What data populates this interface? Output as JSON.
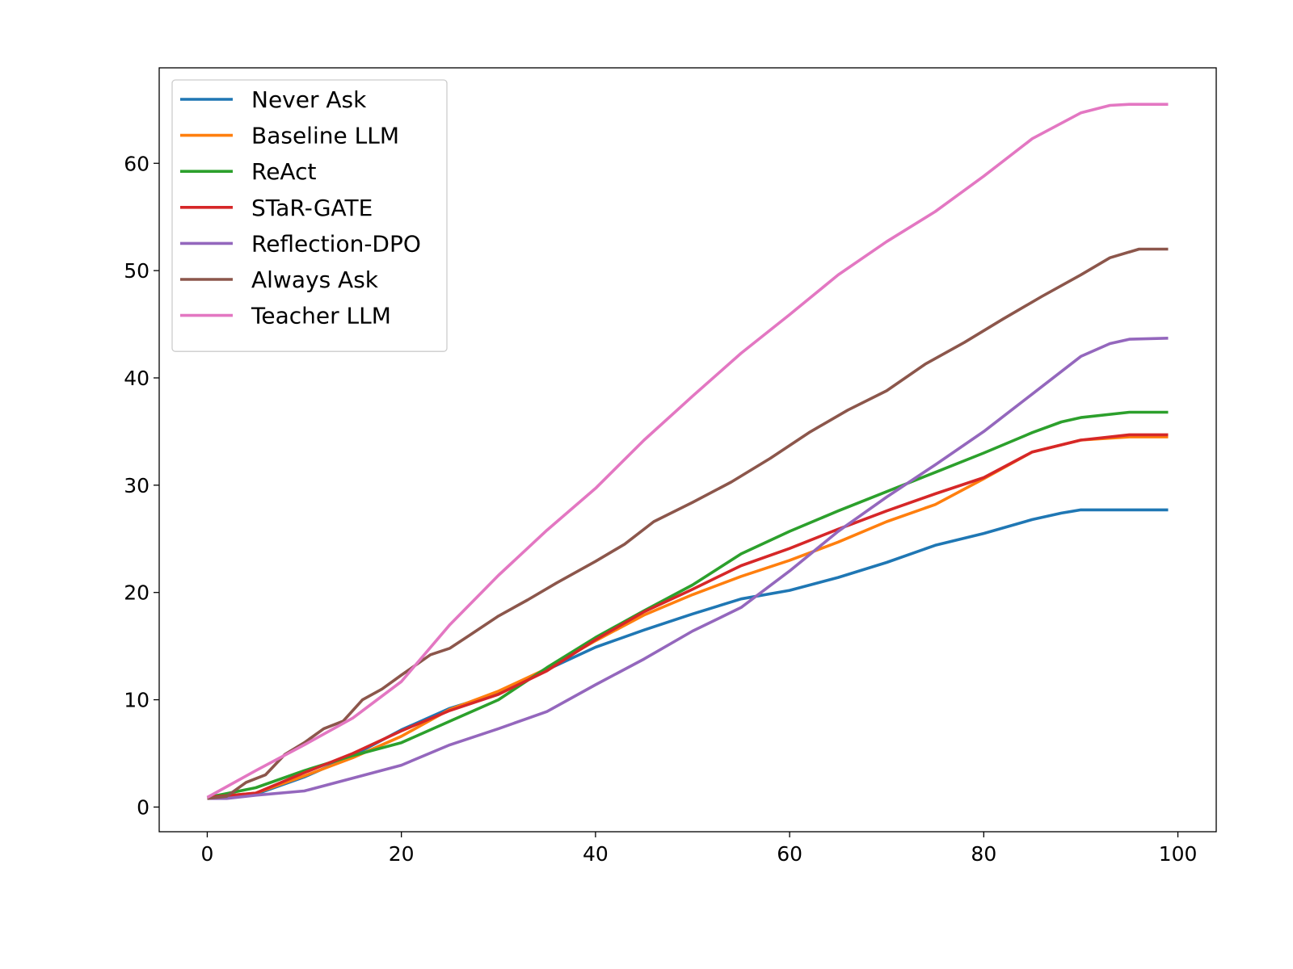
{
  "chart_data": {
    "type": "line",
    "title": "",
    "xlabel": "",
    "ylabel": "",
    "xlim": [
      -4.95,
      103.95
    ],
    "ylim": [
      -2.3,
      68.9
    ],
    "xticks": [
      0,
      20,
      40,
      60,
      80,
      100
    ],
    "yticks": [
      0,
      10,
      20,
      30,
      40,
      50,
      60
    ],
    "grid": false,
    "legend_position": "top-left",
    "series": [
      {
        "name": "Never Ask",
        "color": "#1f77b4",
        "x": [
          0,
          5,
          10,
          15,
          20,
          25,
          30,
          35,
          40,
          45,
          50,
          55,
          60,
          65,
          70,
          75,
          80,
          85,
          88,
          90,
          95,
          99
        ],
        "y": [
          0.9,
          1.2,
          2.8,
          4.8,
          7.2,
          9.2,
          10.6,
          12.8,
          14.9,
          16.5,
          18.0,
          19.4,
          20.2,
          21.4,
          22.8,
          24.4,
          25.5,
          26.8,
          27.4,
          27.7,
          27.7,
          27.7
        ]
      },
      {
        "name": "Baseline LLM",
        "color": "#ff7f0e",
        "x": [
          0,
          5,
          10,
          15,
          20,
          25,
          30,
          35,
          40,
          45,
          50,
          55,
          60,
          65,
          70,
          75,
          80,
          85,
          90,
          95,
          99
        ],
        "y": [
          0.9,
          1.3,
          2.9,
          4.6,
          6.6,
          9.1,
          10.8,
          12.9,
          15.5,
          17.9,
          19.8,
          21.5,
          23.0,
          24.7,
          26.6,
          28.2,
          30.6,
          33.1,
          34.2,
          34.5,
          34.5
        ]
      },
      {
        "name": "ReAct",
        "color": "#2ca02c",
        "x": [
          0,
          5,
          10,
          15,
          20,
          25,
          30,
          35,
          40,
          45,
          50,
          55,
          60,
          65,
          70,
          75,
          80,
          85,
          88,
          90,
          95,
          99
        ],
        "y": [
          0.9,
          1.8,
          3.4,
          4.8,
          6.0,
          8.0,
          10.0,
          13.0,
          15.8,
          18.3,
          20.7,
          23.6,
          25.7,
          27.6,
          29.4,
          31.2,
          33.0,
          34.9,
          35.9,
          36.3,
          36.8,
          36.8
        ]
      },
      {
        "name": "STaR-GATE",
        "color": "#d62728",
        "x": [
          0,
          5,
          10,
          15,
          20,
          25,
          30,
          35,
          40,
          45,
          50,
          55,
          60,
          65,
          70,
          75,
          80,
          85,
          90,
          95,
          99
        ],
        "y": [
          0.9,
          1.3,
          3.2,
          5.0,
          7.1,
          9.0,
          10.5,
          12.7,
          15.6,
          18.2,
          20.3,
          22.5,
          24.1,
          25.9,
          27.6,
          29.2,
          30.7,
          33.1,
          34.2,
          34.7,
          34.7
        ]
      },
      {
        "name": "Reflection-DPO",
        "color": "#9467bd",
        "x": [
          0,
          2,
          5,
          10,
          15,
          20,
          25,
          30,
          35,
          40,
          45,
          50,
          55,
          60,
          65,
          70,
          75,
          80,
          85,
          90,
          93,
          95,
          99
        ],
        "y": [
          0.8,
          0.8,
          1.1,
          1.5,
          2.7,
          3.9,
          5.8,
          7.3,
          8.9,
          11.4,
          13.8,
          16.4,
          18.6,
          22.0,
          25.7,
          28.9,
          31.9,
          35.0,
          38.5,
          42.0,
          43.2,
          43.6,
          43.7
        ]
      },
      {
        "name": "Always Ask",
        "color": "#8c564b",
        "x": [
          0,
          2,
          4,
          6,
          8,
          10,
          12,
          14,
          16,
          18,
          20,
          23,
          25,
          27,
          30,
          33,
          36,
          40,
          43,
          46,
          50,
          54,
          58,
          62,
          66,
          70,
          74,
          78,
          82,
          86,
          90,
          93,
          96,
          99
        ],
        "y": [
          0.8,
          1.0,
          2.3,
          3.0,
          4.9,
          6.0,
          7.3,
          8.0,
          10.0,
          11.0,
          12.3,
          14.2,
          14.8,
          16.0,
          17.8,
          19.3,
          20.9,
          22.9,
          24.5,
          26.6,
          28.4,
          30.3,
          32.5,
          34.9,
          37.0,
          38.8,
          41.3,
          43.3,
          45.5,
          47.6,
          49.6,
          51.2,
          52.0,
          52.0
        ]
      },
      {
        "name": "Teacher LLM",
        "color": "#e377c2",
        "x": [
          0,
          5,
          10,
          15,
          20,
          25,
          30,
          35,
          40,
          45,
          50,
          55,
          60,
          65,
          70,
          75,
          80,
          85,
          90,
          93,
          95,
          99
        ],
        "y": [
          0.9,
          3.4,
          5.8,
          8.3,
          11.7,
          17.0,
          21.6,
          25.8,
          29.7,
          34.2,
          38.3,
          42.3,
          45.9,
          49.6,
          52.7,
          55.5,
          58.8,
          62.3,
          64.7,
          65.4,
          65.5,
          65.5
        ]
      }
    ]
  }
}
